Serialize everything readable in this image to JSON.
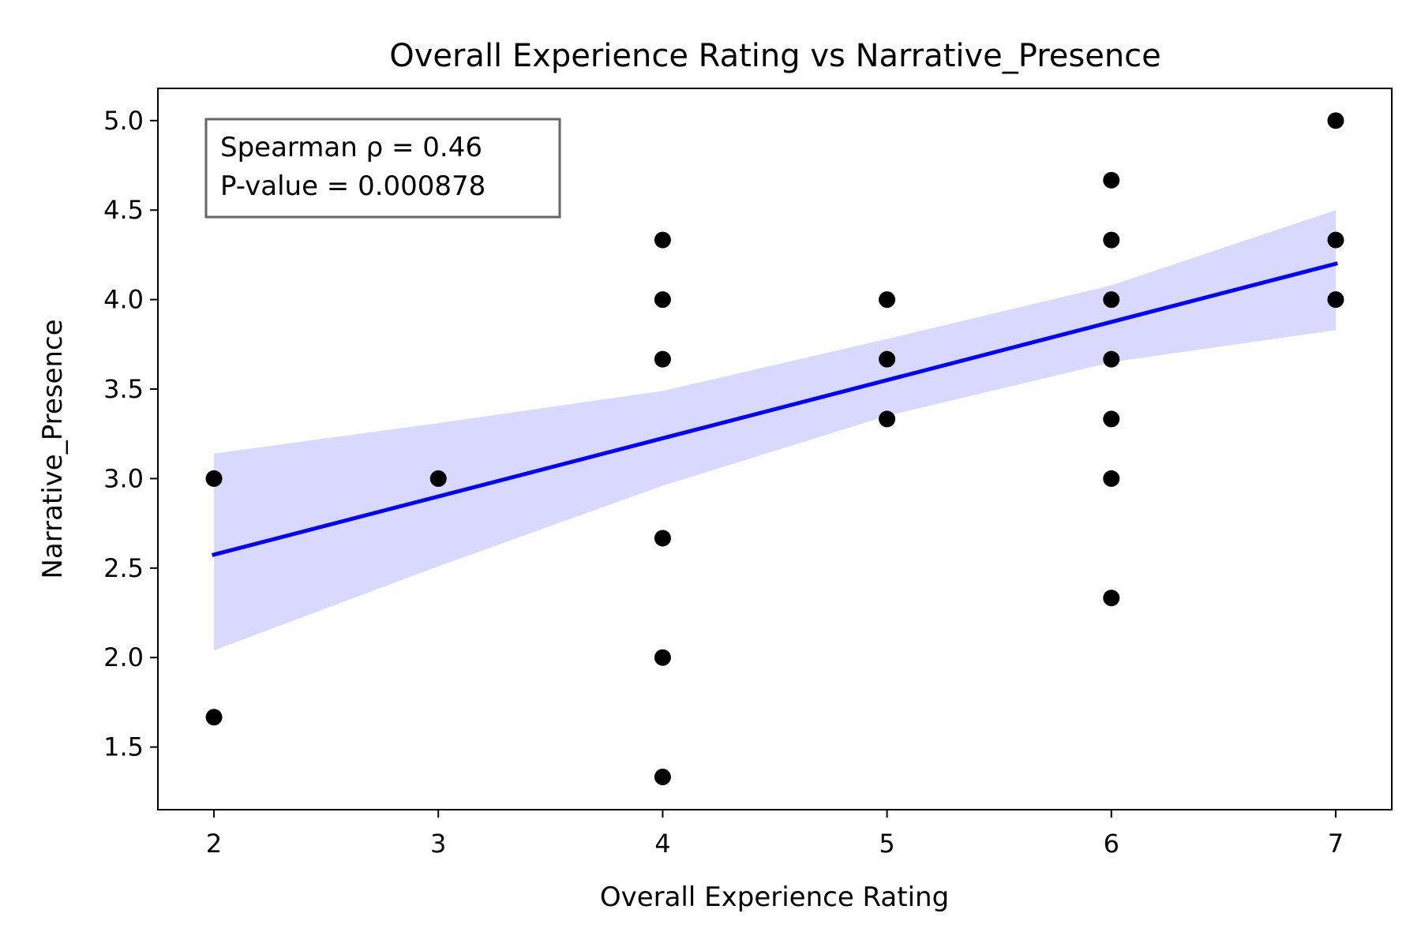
{
  "chart_data": {
    "type": "scatter",
    "title": "Overall Experience Rating vs Narrative_Presence",
    "xlabel": "Overall Experience Rating",
    "ylabel": "Narrative_Presence",
    "xlim": [
      1.75,
      7.25
    ],
    "ylim": [
      1.15,
      5.18
    ],
    "x_ticks": [
      2,
      3,
      4,
      5,
      6,
      7
    ],
    "y_ticks": [
      1.5,
      2.0,
      2.5,
      3.0,
      3.5,
      4.0,
      4.5,
      5.0
    ],
    "x_tick_labels": [
      "2",
      "3",
      "4",
      "5",
      "6",
      "7"
    ],
    "y_tick_labels": [
      "1.5",
      "2.0",
      "2.5",
      "3.0",
      "3.5",
      "4.0",
      "4.5",
      "5.0"
    ],
    "grid": false,
    "points": [
      {
        "x": 2,
        "y": 3.0
      },
      {
        "x": 2,
        "y": 1.667
      },
      {
        "x": 3,
        "y": 3.0
      },
      {
        "x": 4,
        "y": 4.333
      },
      {
        "x": 4,
        "y": 4.0
      },
      {
        "x": 4,
        "y": 3.667
      },
      {
        "x": 4,
        "y": 2.667
      },
      {
        "x": 4,
        "y": 2.0
      },
      {
        "x": 4,
        "y": 1.333
      },
      {
        "x": 5,
        "y": 4.0
      },
      {
        "x": 5,
        "y": 3.667
      },
      {
        "x": 5,
        "y": 3.333
      },
      {
        "x": 6,
        "y": 4.667
      },
      {
        "x": 6,
        "y": 4.333
      },
      {
        "x": 6,
        "y": 4.0
      },
      {
        "x": 6,
        "y": 3.667
      },
      {
        "x": 6,
        "y": 3.333
      },
      {
        "x": 6,
        "y": 3.0
      },
      {
        "x": 6,
        "y": 2.333
      },
      {
        "x": 7,
        "y": 5.0
      },
      {
        "x": 7,
        "y": 4.333
      },
      {
        "x": 7,
        "y": 4.0
      }
    ],
    "regression_line": {
      "x": [
        2,
        7
      ],
      "y": [
        2.575,
        4.2
      ],
      "color": "#0000ff"
    },
    "confidence_band": {
      "color": "#0000ff",
      "opacity": 0.15,
      "x": [
        2,
        3,
        4,
        5,
        6,
        7
      ],
      "upper": [
        3.14,
        3.31,
        3.49,
        3.78,
        4.08,
        4.5
      ],
      "lower": [
        2.04,
        2.51,
        2.96,
        3.35,
        3.65,
        3.83
      ]
    },
    "marker_color": "#000000",
    "annotation": {
      "lines": [
        "Spearman ρ = 0.46",
        "P-value = 0.000878"
      ],
      "position": "top-left"
    }
  }
}
